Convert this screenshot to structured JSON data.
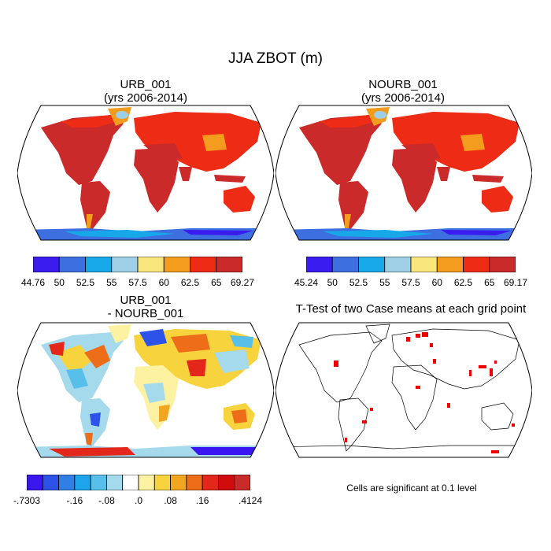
{
  "figure_title": "JJA ZBOT (m)",
  "panels": [
    {
      "id": "urb",
      "title_line1": "URB_001",
      "title_line2": "(yrs 2006-2014)",
      "colorbar": {
        "colors": [
          "#3b1cf0",
          "#3d6fe0",
          "#17a8ea",
          "#9ecfe6",
          "#f9e77e",
          "#f39c1d",
          "#ee2b14",
          "#cb2a2a"
        ],
        "labels": [
          "44.76",
          "50",
          "52.5",
          "55",
          "57.5",
          "60",
          "62.5",
          "65",
          "69.27"
        ]
      }
    },
    {
      "id": "nourb",
      "title_line1": "NOURB_001",
      "title_line2": "(yrs 2006-2014)",
      "colorbar": {
        "colors": [
          "#3b1cf0",
          "#3d6fe0",
          "#17a8ea",
          "#9ecfe6",
          "#f9e77e",
          "#f39c1d",
          "#ee2b14",
          "#cb2a2a"
        ],
        "labels": [
          "45.24",
          "50",
          "52.5",
          "55",
          "57.5",
          "60",
          "62.5",
          "65",
          "69.17"
        ]
      }
    },
    {
      "id": "diff",
      "title_line1": "URB_001",
      "title_line2": "- NOURB_001",
      "colorbar": {
        "colors": [
          "#3a16f0",
          "#2d52ea",
          "#2f7fe6",
          "#1ca5ec",
          "#58bfea",
          "#a5d9ec",
          "#fefefe",
          "#fdf2a2",
          "#f7d33d",
          "#f2a51f",
          "#ee6d19",
          "#e3271a",
          "#d10c0c",
          "#c92a2a"
        ],
        "labels": [
          "-.7303",
          "-.16",
          "-.08",
          ".0",
          ".08",
          ".16",
          ".4124"
        ]
      }
    },
    {
      "id": "ttest",
      "title": "T-Test of two Case means at each grid point",
      "note": "Cells are significant at 0.1 level"
    }
  ],
  "map_colors": {
    "ocean": "#ffffff",
    "tropics": "#cb2a2a",
    "midlat": "#ee2b14",
    "highlat": "#f39c1d",
    "antarctica": "#3d6fe0",
    "significant": "#ee0000"
  }
}
